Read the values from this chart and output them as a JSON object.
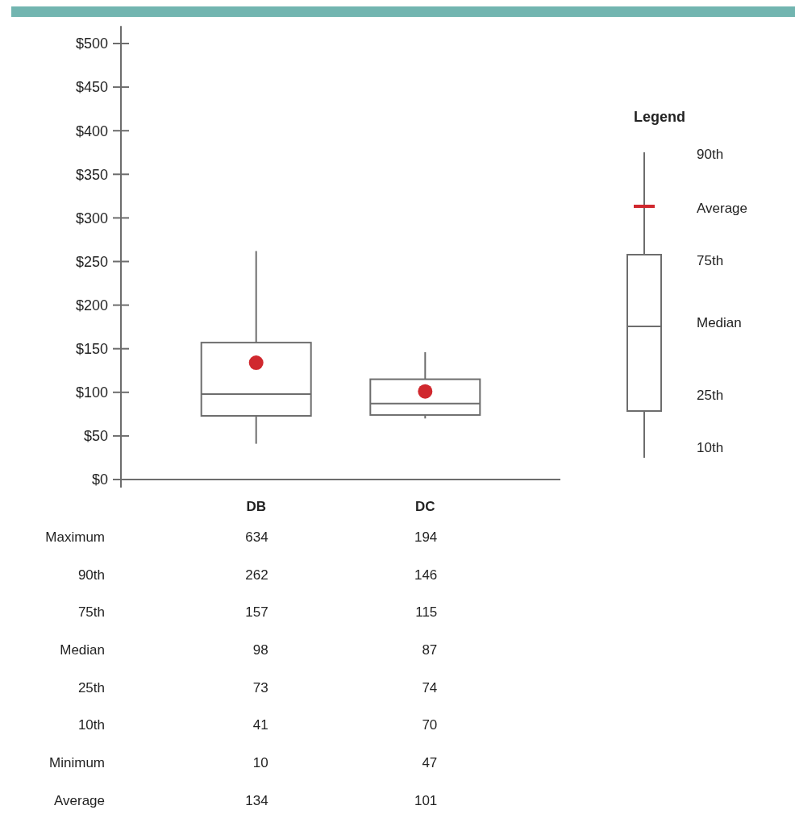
{
  "chart_data": {
    "type": "box",
    "categories": [
      "DB",
      "DC"
    ],
    "series": [
      {
        "color": "#6d6d6d",
        "boxes": [
          {
            "low": 41,
            "q1": 73,
            "median": 98,
            "q3": 157,
            "high": 262,
            "mean": 134
          },
          {
            "low": 70,
            "q1": 74,
            "median": 87,
            "q3": 115,
            "high": 146,
            "mean": 101
          }
        ]
      }
    ],
    "ylim": [
      0,
      520
    ],
    "yticks": [
      {
        "value": 0,
        "label": "$0"
      },
      {
        "value": 50,
        "label": "$50"
      },
      {
        "value": 100,
        "label": "$100"
      },
      {
        "value": 150,
        "label": "$150"
      },
      {
        "value": 200,
        "label": "$200"
      },
      {
        "value": 250,
        "label": "$250"
      },
      {
        "value": 300,
        "label": "$300"
      },
      {
        "value": 350,
        "label": "$350"
      },
      {
        "value": 400,
        "label": "$400"
      },
      {
        "value": 450,
        "label": "$450"
      },
      {
        "value": 500,
        "label": "$500"
      }
    ],
    "legend_title": "Legend",
    "annotations": [
      "Maximum",
      "90th",
      "75th",
      "Median",
      "25th",
      "10th",
      "Minimum",
      "Average",
      "634",
      "194",
      "262",
      "146",
      "157",
      "115",
      "98",
      "87",
      "73",
      "74",
      "41",
      "70",
      "10",
      "47",
      "134",
      "101"
    ]
  }
}
